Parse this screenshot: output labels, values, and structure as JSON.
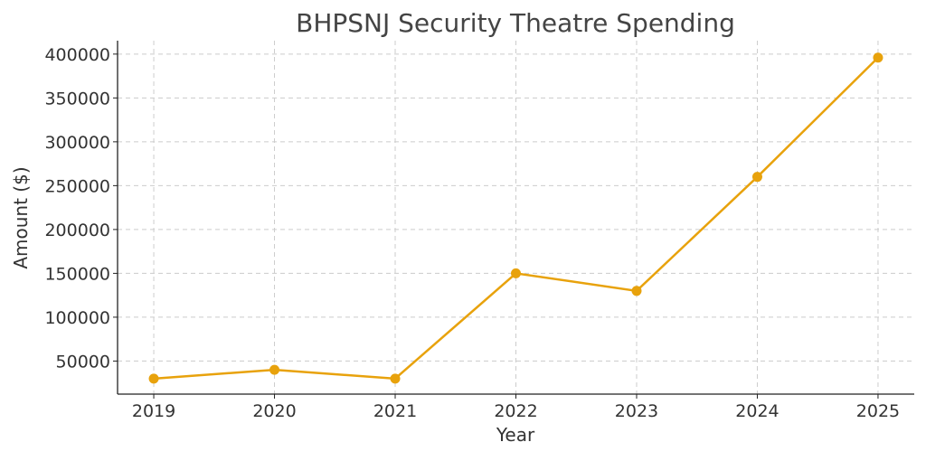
{
  "chart_data": {
    "type": "line",
    "title": "BHPSNJ Security Theatre Spending",
    "xlabel": "Year",
    "ylabel": "Amount ($)",
    "x": [
      2019,
      2020,
      2021,
      2022,
      2023,
      2024,
      2025
    ],
    "series": [
      {
        "name": "Amount",
        "values": [
          30000,
          40000,
          30000,
          150000,
          130000,
          260000,
          396000
        ],
        "color": "#E8A20C"
      }
    ],
    "xticks": [
      "2019",
      "2020",
      "2021",
      "2022",
      "2023",
      "2024",
      "2025"
    ],
    "yticks": [
      "50000",
      "100000",
      "150000",
      "200000",
      "250000",
      "300000",
      "350000",
      "400000"
    ],
    "xlim": [
      2018.7,
      2025.3
    ],
    "ylim": [
      12300,
      415300
    ],
    "grid": true,
    "marker": "circle"
  }
}
